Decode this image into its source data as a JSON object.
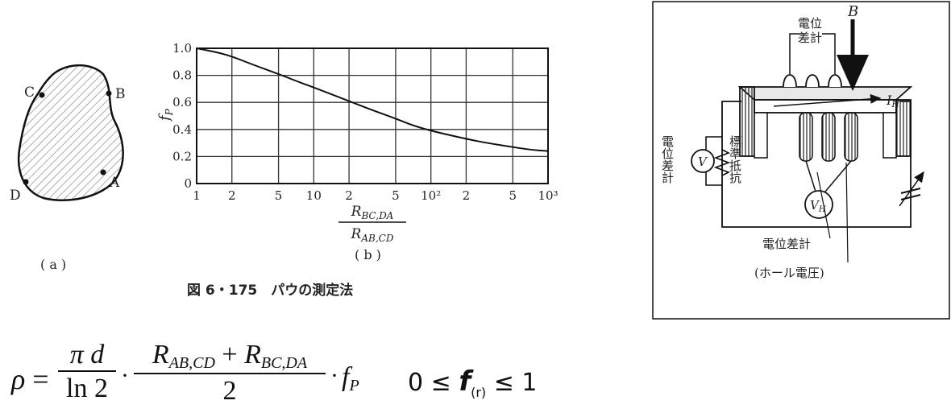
{
  "fig_a": {
    "points": [
      "C",
      "B",
      "A",
      "D"
    ],
    "caption": "( a )"
  },
  "chart_data": {
    "type": "line",
    "ylabel": "fP",
    "x_ticks": [
      "1",
      "2",
      "5",
      "10",
      "2",
      "5",
      "10²",
      "2",
      "5",
      "10³"
    ],
    "x_tick_values": [
      1,
      2,
      5,
      10,
      20,
      50,
      100,
      200,
      500,
      1000
    ],
    "y_ticks": [
      "1.0",
      "0.8",
      "0.6",
      "0.4",
      "0.2",
      "0"
    ],
    "xlabel_num": "RBC,DA",
    "xlabel_den": "RAB,CD",
    "xscale": "log",
    "xlim": [
      1,
      1000
    ],
    "ylim": [
      0,
      1.0
    ],
    "grid": true,
    "caption": "( b )",
    "x": [
      1,
      1.5,
      2,
      3,
      5,
      7,
      10,
      20,
      30,
      50,
      70,
      100,
      200,
      300,
      500,
      700,
      1000
    ],
    "y": [
      1.0,
      0.97,
      0.94,
      0.88,
      0.81,
      0.76,
      0.71,
      0.61,
      0.55,
      0.48,
      0.43,
      0.39,
      0.33,
      0.3,
      0.27,
      0.25,
      0.24
    ]
  },
  "figure_caption": "図 6・175　パウの測定法",
  "fig_c": {
    "probe_label": "電位\n差計",
    "field_label": "B",
    "current_label": "IH",
    "voltmeter_left_side": "電位差計",
    "voltmeter_left": "V",
    "resistor_label": "標準抵抗",
    "hall_meter": "VH",
    "hall_meter_name": "電位差計",
    "hall_meter_note": "(ホール電圧)"
  },
  "formula": {
    "lhs": "ρ",
    "eq": "=",
    "frac1_num": "π d",
    "frac1_den": "ln 2",
    "frac2_num_a": "R",
    "frac2_num_a_sub": "AB,CD",
    "frac2_plus": "+",
    "frac2_num_b": "R",
    "frac2_num_b_sub": "BC,DA",
    "frac2_den": "2",
    "dot": "·",
    "factor": "f",
    "factor_sub": "P",
    "cond_left": "0 ≤",
    "cond_f": "f",
    "cond_sub": "(r)",
    "cond_right": "≤ 1"
  }
}
